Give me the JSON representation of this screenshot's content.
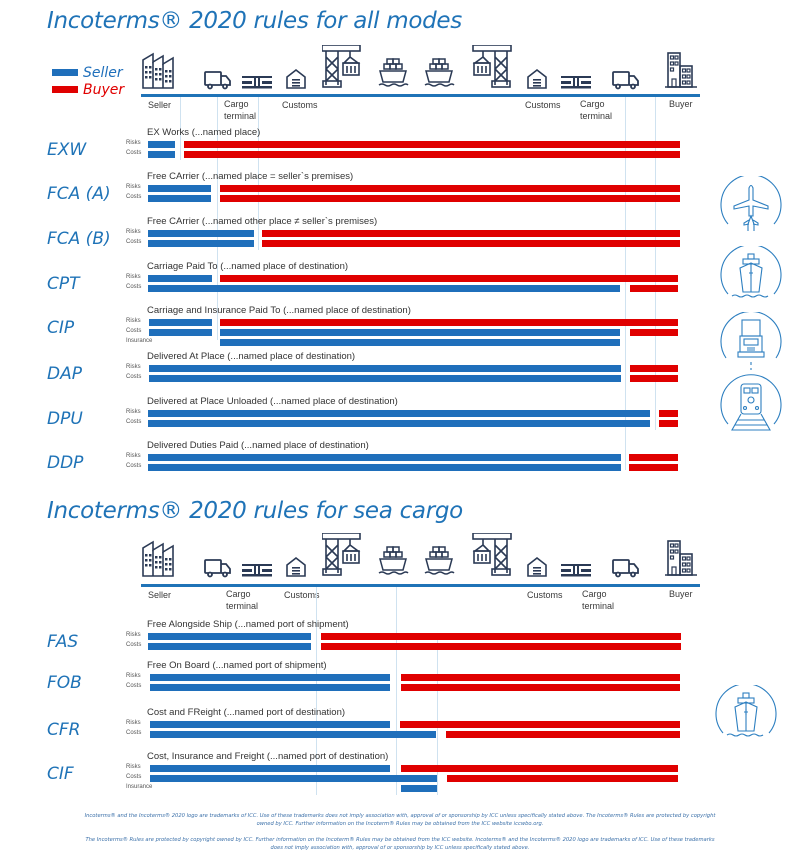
{
  "colors": {
    "seller": "#1f6fbb",
    "buyer": "#e00000",
    "accent": "#1f73b7"
  },
  "titles": {
    "all_modes": "Incoterms® 2020 rules for all modes",
    "sea_cargo": "Incoterms® 2020 rules for sea cargo"
  },
  "legend": {
    "seller": "Seller",
    "buyer": "Buyer"
  },
  "timeline": {
    "stops": [
      "Seller",
      "Cargo terminal",
      "Customs",
      "Customs",
      "Cargo terminal",
      "Buyer"
    ],
    "icons": [
      "factory-icon",
      "truck-icon",
      "cargo-terminal-icon",
      "warehouse-icon",
      "crane-icon",
      "container-ship-icon",
      "container-ship-icon",
      "crane-icon",
      "warehouse-icon",
      "cargo-terminal-icon",
      "truck-icon",
      "office-building-icon"
    ]
  },
  "row_labels": {
    "risks": "Risks",
    "costs": "Costs",
    "insurance": "Insurance"
  },
  "all_modes": [
    {
      "code": "EXW",
      "name": "EX Works (...named place)"
    },
    {
      "code": "FCA (A)",
      "name": "Free CArrier (...named place = seller`s premises)"
    },
    {
      "code": "FCA (B)",
      "name": "Free CArrier (...named other place ≠ seller`s premises)"
    },
    {
      "code": "CPT",
      "name": "Carriage Paid To (...named place of destination)"
    },
    {
      "code": "CIP",
      "name": "Carriage and Insurance Paid To (...named place of destination)"
    },
    {
      "code": "DAP",
      "name": "Delivered At Place (...named place of destination)"
    },
    {
      "code": "DPU",
      "name": "Delivered at Place Unloaded (...named place of destination)"
    },
    {
      "code": "DDP",
      "name": "Delivered Duties Paid (...named place of destination)"
    }
  ],
  "sea_cargo": [
    {
      "code": "FAS",
      "name": "Free Alongside Ship (...named port of shipment)"
    },
    {
      "code": "FOB",
      "name": "Free On Board (...named port of shipment)"
    },
    {
      "code": "CFR",
      "name": "Cost and FReight (...named port of destination)"
    },
    {
      "code": "CIF",
      "name": "Cost, Insurance and Freight  (...named port of destination)"
    }
  ],
  "mode_icons": {
    "all_modes": [
      "airplane-icon",
      "ship-icon",
      "truck-icon",
      "train-icon"
    ],
    "sea_cargo": [
      "ship-icon"
    ]
  },
  "footnotes": {
    "line1": "Incoterms® and the Incoterms® 2020 logo are trademarks of ICC.  Use of these trademarks does not imply association with, approval of or sponsorship by ICC unless specifically stated above.  The Incoterms® Rules are protected by copyright owned by ICC.  Further information on the Incoterm® Rules may be obtained from the ICC website iccwbo.org.",
    "line2": "The Incoterms® Rules are protected by copyright owned by ICC.  Further information on the Incoterm® Rules may be obtained from the ICC website. Incoterms® and the Incoterms® 2020 logo are trademarks of ICC.  Use of these trademarks does not imply association with, approval of or sponsorship by ICC unless specifically stated above."
  }
}
